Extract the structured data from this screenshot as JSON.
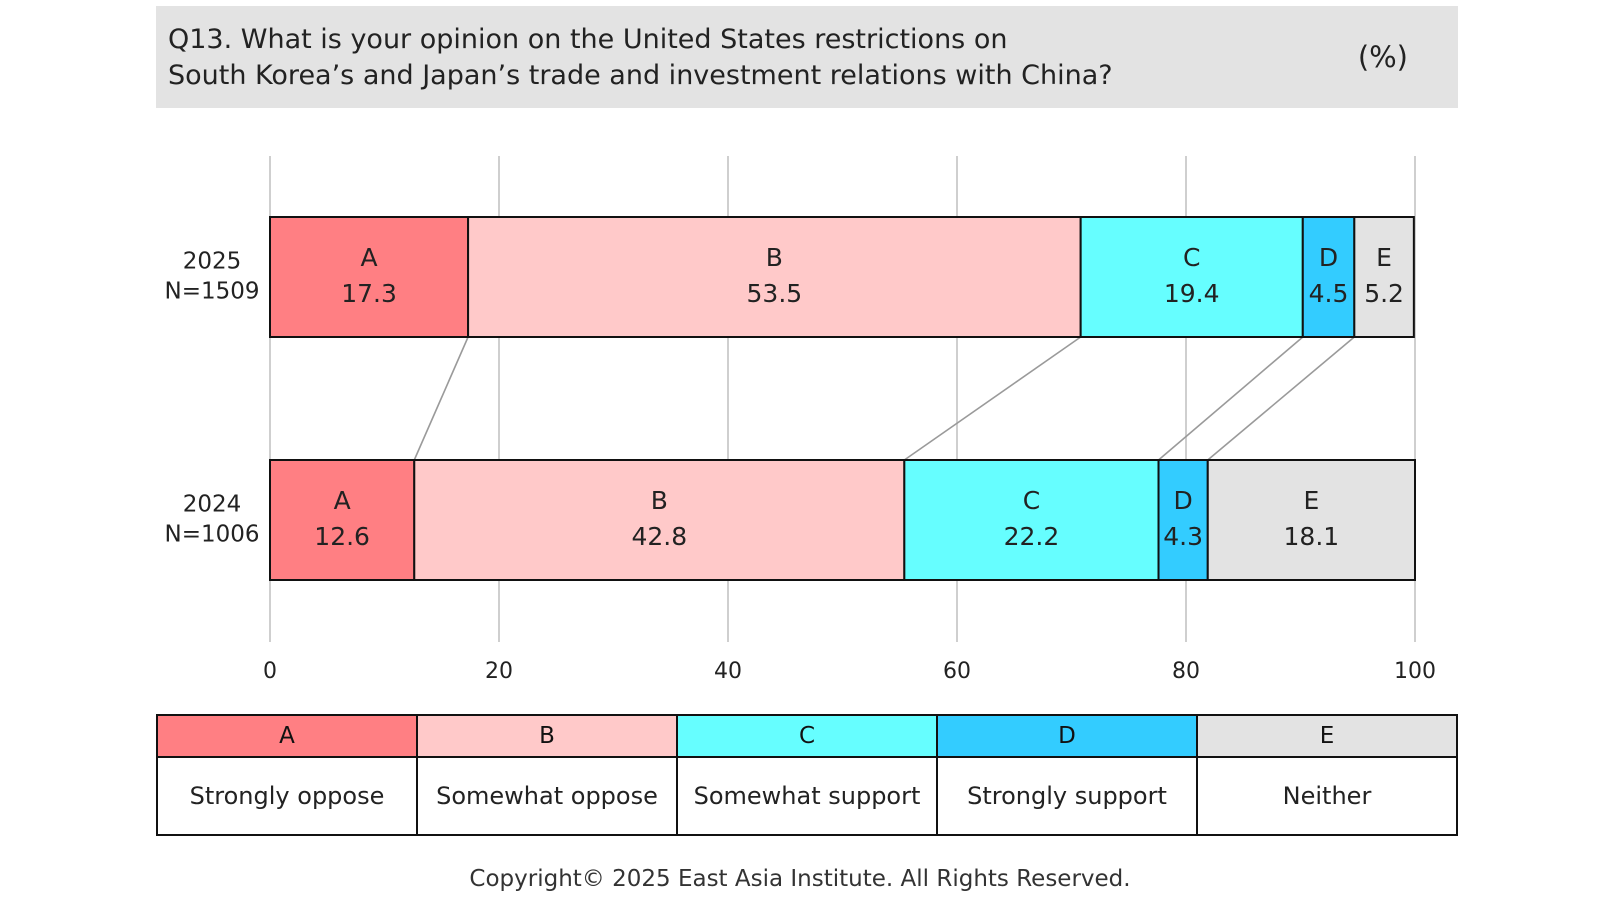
{
  "header": {
    "question_line1": "Q13. What is your opinion on the United States restrictions on",
    "question_line2": "South Korea’s and Japan’s trade and investment relations with China?",
    "unit": "(%)"
  },
  "chart_data": {
    "type": "bar",
    "orientation": "horizontal",
    "stacked": true,
    "xlim": [
      0,
      100
    ],
    "xticks": [
      0,
      20,
      40,
      60,
      80,
      100
    ],
    "grid": true,
    "rows": [
      {
        "year": "2025",
        "n": "N=1509",
        "values": [
          17.3,
          53.5,
          19.4,
          4.5,
          5.2
        ]
      },
      {
        "year": "2024",
        "n": "N=1006",
        "values": [
          12.6,
          42.8,
          22.2,
          4.3,
          18.1
        ]
      }
    ],
    "keys": [
      "A",
      "B",
      "C",
      "D",
      "E"
    ],
    "colors": [
      "#ff7f83",
      "#ffc9c9",
      "#66feff",
      "#33ccff",
      "#e3e3e3"
    ]
  },
  "legend": [
    {
      "key": "A",
      "label": "Strongly oppose",
      "color": "#ff7f83"
    },
    {
      "key": "B",
      "label": "Somewhat oppose",
      "color": "#ffc9c9"
    },
    {
      "key": "C",
      "label": "Somewhat support",
      "color": "#66feff"
    },
    {
      "key": "D",
      "label": "Strongly support",
      "color": "#33ccff"
    },
    {
      "key": "E",
      "label": "Neither",
      "color": "#e3e3e3"
    }
  ],
  "footer": {
    "copyright": "Copyright© 2025 East Asia Institute. All Rights Reserved."
  }
}
